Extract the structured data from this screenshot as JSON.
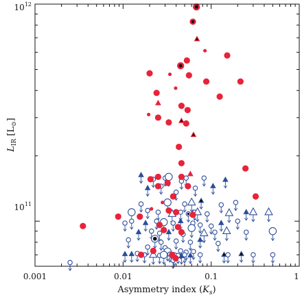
{
  "chart_data": {
    "type": "scatter",
    "xscale": "log",
    "yscale": "log",
    "xlim": [
      0.001,
      1
    ],
    "ylim": [
      62000000000,
      1000000000000
    ],
    "grid": false,
    "legend": "none",
    "xlabel": "Asymmetry index (K_s)",
    "ylabel": "L_IR [L_⊙]",
    "xlabel_main": "Asymmetry index (",
    "xlabel_sym": "K",
    "xlabel_sub": "s",
    "xlabel_end": ")",
    "ylabel_main": "L",
    "ylabel_sub": "IR",
    "ylabel_unit_open": " [L",
    "ylabel_unit_sub": "⊙",
    "ylabel_unit_close": "]",
    "x_ticks": [
      {
        "value": 0.001,
        "label": "0.001"
      },
      {
        "value": 0.01,
        "label": "0.01"
      },
      {
        "value": 0.1,
        "label": "0.1"
      },
      {
        "value": 1,
        "label": "1"
      }
    ],
    "y_ticks": [
      {
        "value": 100000000000,
        "base": "10",
        "exp": "11"
      },
      {
        "value": 1000000000000,
        "base": "10",
        "exp": "12"
      }
    ],
    "colors": {
      "detection": "#e8233a",
      "upper_limit": "#2c4d9a",
      "black": "#111111"
    },
    "series": [
      {
        "type": "detection",
        "points": [
          {
            "x": 0.068,
            "y": 970000000000.0,
            "s": "l",
            "c": true
          },
          {
            "x": 0.062,
            "y": 830000000000.0,
            "s": "m",
            "c": true
          },
          {
            "x": 0.069,
            "y": 690000000000.0,
            "s": "t",
            "c": true
          },
          {
            "x": 0.085,
            "y": 610000000000.0,
            "s": "s"
          },
          {
            "x": 0.152,
            "y": 580000000000.0,
            "s": "m"
          },
          {
            "x": 0.053,
            "y": 550000000000.0,
            "s": "m"
          },
          {
            "x": 0.045,
            "y": 520000000000.0,
            "s": "l",
            "c": true
          },
          {
            "x": 0.034,
            "y": 475000000000.0,
            "s": "s"
          },
          {
            "x": 0.02,
            "y": 480000000000.0,
            "s": "m"
          },
          {
            "x": 0.056,
            "y": 470000000000.0,
            "s": "m"
          },
          {
            "x": 0.088,
            "y": 440000000000.0,
            "s": "m"
          },
          {
            "x": 0.215,
            "y": 440000000000.0,
            "s": "m"
          },
          {
            "x": 0.0395,
            "y": 410000000000.0,
            "s": "s"
          },
          {
            "x": 0.024,
            "y": 390000000000.0,
            "s": "m"
          },
          {
            "x": 0.125,
            "y": 375000000000.0,
            "s": "m"
          },
          {
            "x": 0.025,
            "y": 350000000000.0,
            "s": "t"
          },
          {
            "x": 0.046,
            "y": 340000000000.0,
            "s": "m"
          },
          {
            "x": 0.054,
            "y": 325000000000.0,
            "s": "m"
          },
          {
            "x": 0.0195,
            "y": 310000000000.0,
            "s": "s"
          },
          {
            "x": 0.025,
            "y": 300000000000.0,
            "s": "m"
          },
          {
            "x": 0.046,
            "y": 290000000000.0,
            "s": "t",
            "c": true
          },
          {
            "x": 0.033,
            "y": 285000000000.0,
            "s": "m"
          },
          {
            "x": 0.052,
            "y": 282000000000.0,
            "s": "m"
          },
          {
            "x": 0.063,
            "y": 250000000000.0,
            "s": "t",
            "c": true
          },
          {
            "x": 0.043,
            "y": 220000000000.0,
            "s": "m"
          },
          {
            "x": 0.046,
            "y": 185000000000.0,
            "s": "m"
          },
          {
            "x": 0.025,
            "y": 160000000000.0,
            "s": "m"
          },
          {
            "x": 0.0205,
            "y": 156000000000.0,
            "s": "m"
          },
          {
            "x": 0.046,
            "y": 160000000000.0,
            "s": "m"
          },
          {
            "x": 0.058,
            "y": 165000000000.0,
            "s": "t"
          },
          {
            "x": 0.245,
            "y": 175000000000.0,
            "s": "m"
          },
          {
            "x": 0.025,
            "y": 145000000000.0,
            "s": "m"
          },
          {
            "x": 0.032,
            "y": 150000000000.0,
            "s": "m"
          },
          {
            "x": 0.0545,
            "y": 145000000000.0,
            "s": "m"
          },
          {
            "x": 0.037,
            "y": 130000000000.0,
            "s": "m"
          },
          {
            "x": 0.32,
            "y": 130000000000.0,
            "s": "m"
          },
          {
            "x": 0.028,
            "y": 122000000000.0,
            "s": "s"
          },
          {
            "x": 0.021,
            "y": 114000000000.0,
            "s": "s"
          },
          {
            "x": 0.033,
            "y": 112000000000.0,
            "s": "m"
          },
          {
            "x": 0.0088,
            "y": 105000000000.0,
            "s": "m"
          },
          {
            "x": 0.0155,
            "y": 105000000000.0,
            "s": "m"
          },
          {
            "x": 0.04,
            "y": 110000000000.0,
            "s": "m"
          },
          {
            "x": 0.062,
            "y": 107000000000.0,
            "s": "m"
          },
          {
            "x": 0.0035,
            "y": 95000000000.0,
            "s": "m"
          },
          {
            "x": 0.026,
            "y": 96000000000.0,
            "s": "m"
          },
          {
            "x": 0.029,
            "y": 91000000000.0,
            "s": "m"
          },
          {
            "x": 0.042,
            "y": 94000000000.0,
            "s": "m"
          },
          {
            "x": 0.046,
            "y": 89000000000.0,
            "s": "m"
          },
          {
            "x": 0.022,
            "y": 73000000000.0,
            "s": "m"
          },
          {
            "x": 0.016,
            "y": 70000000000.0,
            "s": "m"
          },
          {
            "x": 0.036,
            "y": 70000000000.0,
            "s": "m"
          },
          {
            "x": 0.0395,
            "y": 67500000000.0,
            "s": "m"
          }
        ]
      },
      {
        "type": "upper_limit",
        "points": [
          {
            "x": 0.016,
            "y": 163000000000.0,
            "s": "t",
            "f": true
          },
          {
            "x": 0.022,
            "y": 156000000000.0,
            "s": "c"
          },
          {
            "x": 0.03,
            "y": 158000000000.0,
            "s": "c"
          },
          {
            "x": 0.033,
            "y": 160000000000.0,
            "s": "C"
          },
          {
            "x": 0.046,
            "y": 153000000000.0,
            "s": "c"
          },
          {
            "x": 0.052,
            "y": 158000000000.0,
            "s": "c"
          },
          {
            "x": 0.083,
            "y": 158000000000.0,
            "s": "c"
          },
          {
            "x": 0.145,
            "y": 155000000000.0,
            "s": "t",
            "f": true
          },
          {
            "x": 0.019,
            "y": 142000000000.0,
            "s": "t",
            "f": true
          },
          {
            "x": 0.027,
            "y": 145000000000.0,
            "s": "c"
          },
          {
            "x": 0.04,
            "y": 136000000000.0,
            "s": "c"
          },
          {
            "x": 0.066,
            "y": 142000000000.0,
            "s": "c"
          },
          {
            "x": 0.105,
            "y": 145000000000.0,
            "s": "t",
            "f": true
          },
          {
            "x": 0.016,
            "y": 120000000000.0,
            "s": "c"
          },
          {
            "x": 0.032,
            "y": 122000000000.0,
            "s": "C"
          },
          {
            "x": 0.05,
            "y": 120000000000.0,
            "s": "c"
          },
          {
            "x": 0.06,
            "y": 122000000000.0,
            "s": "T"
          },
          {
            "x": 0.077,
            "y": 124000000000.0,
            "s": "t",
            "f": true,
            "c": true
          },
          {
            "x": 0.13,
            "y": 119000000000.0,
            "s": "c"
          },
          {
            "x": 0.19,
            "y": 122000000000.0,
            "s": "c"
          },
          {
            "x": 0.0125,
            "y": 110000000000.0,
            "s": "C"
          },
          {
            "x": 0.019,
            "y": 112000000000.0,
            "s": "c"
          },
          {
            "x": 0.025,
            "y": 110000000000.0,
            "s": "c"
          },
          {
            "x": 0.036,
            "y": 108000000000.0,
            "s": "T"
          },
          {
            "x": 0.045,
            "y": 110000000000.0,
            "s": "c"
          },
          {
            "x": 0.055,
            "y": 108000000000.0,
            "s": "c",
            "c": true
          },
          {
            "x": 0.065,
            "y": 110000000000.0,
            "s": "c"
          },
          {
            "x": 0.07,
            "y": 110000000000.0,
            "s": "T"
          },
          {
            "x": 0.09,
            "y": 108000000000.0,
            "s": "c"
          },
          {
            "x": 0.16,
            "y": 109000000000.0,
            "s": "T"
          },
          {
            "x": 0.25,
            "y": 110000000000.0,
            "s": "t",
            "f": true
          },
          {
            "x": 0.3,
            "y": 110000000000.0,
            "s": "T"
          },
          {
            "x": 0.45,
            "y": 110000000000.0,
            "s": "T"
          },
          {
            "x": 0.0105,
            "y": 98000000000.0,
            "s": "c"
          },
          {
            "x": 0.0125,
            "y": 100000000000.0,
            "s": "c"
          },
          {
            "x": 0.018,
            "y": 98000000000.0,
            "s": "t",
            "f": true
          },
          {
            "x": 0.024,
            "y": 100000000000.0,
            "s": "c"
          },
          {
            "x": 0.029,
            "y": 99000000000.0,
            "s": "C"
          },
          {
            "x": 0.037,
            "y": 98000000000.0,
            "s": "c"
          },
          {
            "x": 0.045,
            "y": 100000000000.0,
            "s": "t",
            "f": true
          },
          {
            "x": 0.062,
            "y": 98000000000.0,
            "s": "c"
          },
          {
            "x": 0.06,
            "y": 93000000000.0,
            "s": "C"
          },
          {
            "x": 0.075,
            "y": 96000000000.0,
            "s": "c"
          },
          {
            "x": 0.1,
            "y": 95000000000.0,
            "s": "c"
          },
          {
            "x": 0.13,
            "y": 98000000000.0,
            "s": "t",
            "f": true
          },
          {
            "x": 0.2,
            "y": 100000000000.0,
            "s": "c"
          },
          {
            "x": 0.015,
            "y": 89000000000.0,
            "s": "t",
            "f": true
          },
          {
            "x": 0.021,
            "y": 90000000000.0,
            "s": "c"
          },
          {
            "x": 0.026,
            "y": 88000000000.0,
            "s": "c"
          },
          {
            "x": 0.033,
            "y": 89000000000.0,
            "s": "t",
            "f": true
          },
          {
            "x": 0.048,
            "y": 87000000000.0,
            "s": "c"
          },
          {
            "x": 0.083,
            "y": 88000000000.0,
            "s": "T"
          },
          {
            "x": 0.11,
            "y": 89000000000.0,
            "s": "c"
          },
          {
            "x": 0.15,
            "y": 90000000000.0,
            "s": "T"
          },
          {
            "x": 0.25,
            "y": 89000000000.0,
            "s": "c"
          },
          {
            "x": 0.5,
            "y": 90000000000.0,
            "s": "C"
          },
          {
            "x": 0.0115,
            "y": 82000000000.0,
            "s": "c"
          },
          {
            "x": 0.023,
            "y": 83000000000.0,
            "s": "C",
            "c": true
          },
          {
            "x": 0.027,
            "y": 80000000000.0,
            "s": "c"
          },
          {
            "x": 0.04,
            "y": 81000000000.0,
            "s": "c"
          },
          {
            "x": 0.058,
            "y": 80000000000.0,
            "s": "c"
          },
          {
            "x": 0.075,
            "y": 82000000000.0,
            "s": "t",
            "f": true
          },
          {
            "x": 0.12,
            "y": 79000000000.0,
            "s": "c"
          },
          {
            "x": 0.019,
            "y": 76000000000.0,
            "s": "c"
          },
          {
            "x": 0.03,
            "y": 75500000000.0,
            "s": "c"
          },
          {
            "x": 0.032,
            "y": 72500000000.0,
            "s": "C"
          },
          {
            "x": 0.045,
            "y": 73000000000.0,
            "s": "c"
          },
          {
            "x": 0.052,
            "y": 72000000000.0,
            "s": "c"
          },
          {
            "x": 0.063,
            "y": 72500000000.0,
            "s": "c"
          },
          {
            "x": 0.0105,
            "y": 70500000000.0,
            "s": "t",
            "f": true
          },
          {
            "x": 0.0125,
            "y": 70500000000.0,
            "s": "t",
            "f": true
          },
          {
            "x": 0.0145,
            "y": 71000000000.0,
            "s": "c"
          },
          {
            "x": 0.0175,
            "y": 70000000000.0,
            "s": "c"
          },
          {
            "x": 0.022,
            "y": 70000000000.0,
            "s": "T"
          },
          {
            "x": 0.026,
            "y": 69500000000.0,
            "s": "c"
          },
          {
            "x": 0.029,
            "y": 70000000000.0,
            "s": "C"
          },
          {
            "x": 0.034,
            "y": 70500000000.0,
            "s": "c"
          },
          {
            "x": 0.038,
            "y": 69000000000.0,
            "s": "C"
          },
          {
            "x": 0.042,
            "y": 69500000000.0,
            "s": "c"
          },
          {
            "x": 0.046,
            "y": 69000000000.0,
            "s": "t",
            "f": true
          },
          {
            "x": 0.05,
            "y": 70000000000.0,
            "s": "c"
          },
          {
            "x": 0.058,
            "y": 69500000000.0,
            "s": "t",
            "f": true
          },
          {
            "x": 0.075,
            "y": 70000000000.0,
            "s": "c"
          },
          {
            "x": 0.14,
            "y": 70000000000.0,
            "s": "t",
            "f": true,
            "c": true
          },
          {
            "x": 0.155,
            "y": 70000000000.0,
            "s": "c"
          },
          {
            "x": 0.22,
            "y": 70500000000.0,
            "s": "t",
            "f": true,
            "c": true
          },
          {
            "x": 0.3,
            "y": 70000000000.0,
            "s": "c"
          },
          {
            "x": 0.5,
            "y": 70000000000.0,
            "s": "c"
          },
          {
            "x": 0.0025,
            "y": 64500000000.0,
            "s": "c"
          },
          {
            "x": 0.037,
            "y": 66000000000.0,
            "s": "c"
          }
        ]
      }
    ]
  }
}
